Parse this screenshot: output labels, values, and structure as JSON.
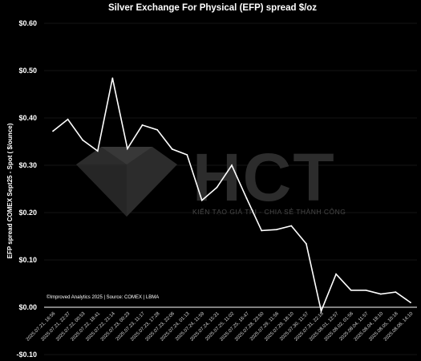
{
  "watermark": {
    "logo_letters": "HCT",
    "tagline": "KIẾN TẠO GIÁ TRỊ - CHIA SẺ THÀNH CÔNG"
  },
  "chart_data": {
    "type": "line",
    "title": "Silver Exchange For Physical (EFP) spread $/oz",
    "ylabel": "EFP spread  COMEX Sept25 - Spot ( $/ounce)",
    "xlabel": "",
    "source": "©Improved Analytics 2025 | Source: COMEX | LBMA",
    "ylim": [
      -0.1,
      0.6
    ],
    "yticks": [
      -0.1,
      0.0,
      0.1,
      0.2,
      0.3,
      0.4,
      0.5,
      0.6
    ],
    "ytick_labels": [
      "-$0.10",
      "$0.00",
      "$0.10",
      "$0.20",
      "$0.30",
      "$0.40",
      "$0.50",
      "$0.60"
    ],
    "grid": "horizontal",
    "line_color": "#ffffff",
    "x": [
      "2025.07.21, 16:56",
      "2025.07.21, 22:37",
      "2025.07.22, 00:53",
      "2025.07.22, 18:41",
      "2025.07.22, 21:14",
      "2025.07.23, 00:23",
      "2025.07.23, 11:17",
      "2025.07.23, 17:28",
      "2025.07.23, 22:06",
      "2025.07.24, 01:13",
      "2025.07.24, 11:59",
      "2025.07.24, 15:31",
      "2025.07.25, 11:02",
      "2025.07.25, 16:47",
      "2025.07.28, 23:50",
      "2025.07.29, 11:56",
      "2025.07.29, 18:10",
      "2025.07.30, 11:57",
      "2025.07.31, 22:18",
      "2025.08.01, 12:57",
      "2025.08.02, 01:56",
      "2025.08.04, 11:57",
      "2025.08.04, 18:10",
      "2025.08.05, 10:16",
      "2025.08.06, 14:10"
    ],
    "values": [
      0.372,
      0.397,
      0.353,
      0.33,
      0.484,
      0.335,
      0.385,
      0.375,
      0.334,
      0.322,
      0.226,
      0.253,
      0.3,
      0.23,
      0.162,
      0.164,
      0.172,
      0.134,
      -0.008,
      0.07,
      0.036,
      0.036,
      0.028,
      0.032,
      0.01
    ]
  }
}
